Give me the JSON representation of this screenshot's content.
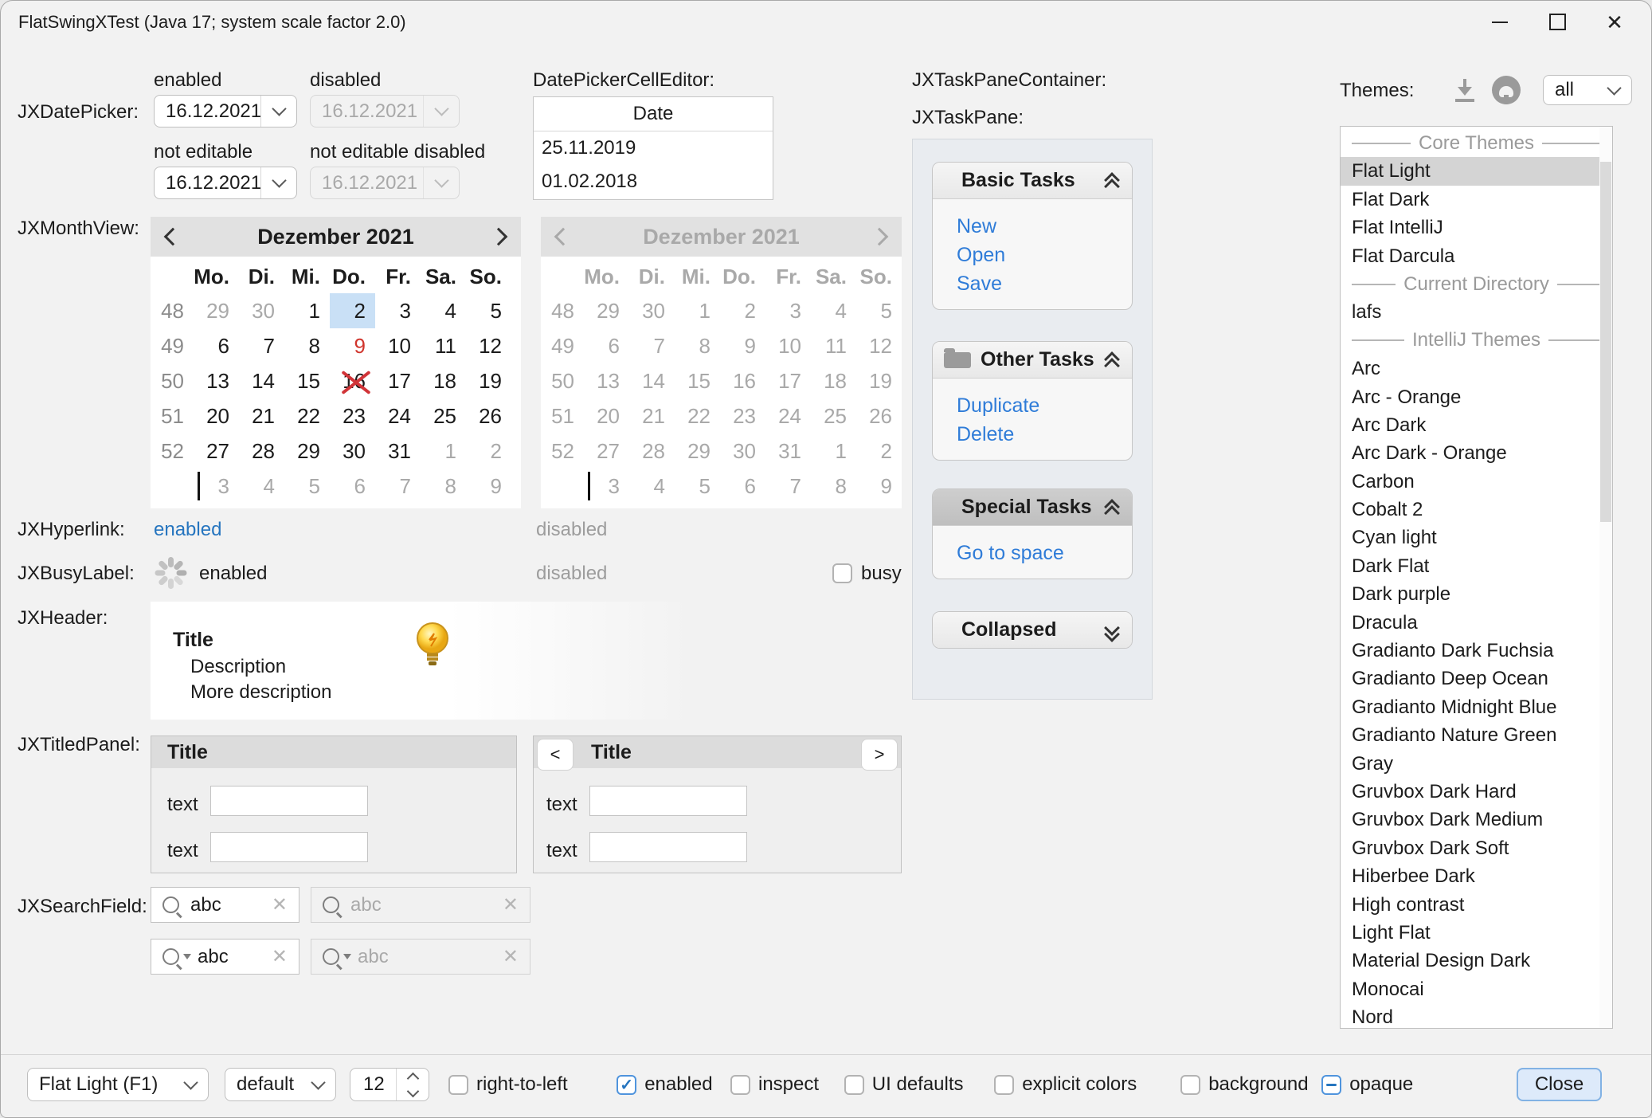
{
  "colors": {
    "accent": "#2675bf",
    "task_link": "#2f7cd8",
    "selection_blue": "#c9e0f6",
    "flag_red": "#d0342c",
    "window_bg": "#f2f2f2",
    "taskpane_container_bg": "#e9ecf0",
    "list_selection_gray": "#d4d4d4"
  },
  "window": {
    "title": "FlatSwingXTest (Java 17;  system scale factor 2.0)"
  },
  "section_labels": {
    "datepicker": "JXDatePicker:",
    "monthview": "JXMonthView:",
    "hyperlink": "JXHyperlink:",
    "busylabel": "JXBusyLabel:",
    "header": "JXHeader:",
    "titledpanel": "JXTitledPanel:",
    "searchfield": "JXSearchField:"
  },
  "datepicker": {
    "enabled_label": "enabled",
    "disabled_label": "disabled",
    "not_editable_label": "not editable",
    "not_editable_disabled_label": "not editable disabled",
    "value": "16.12.2021"
  },
  "cell_editor": {
    "label": "DatePickerCellEditor:",
    "column_header": "Date",
    "rows": [
      "25.11.2019",
      "01.02.2018"
    ]
  },
  "monthview": {
    "title": "Dezember 2021",
    "day_headers": [
      "Mo.",
      "Di.",
      "Mi.",
      "Do.",
      "Fr.",
      "Sa.",
      "So."
    ],
    "weeks": [
      {
        "num": "48",
        "days": [
          {
            "t": "29",
            "s": "muted"
          },
          {
            "t": "30",
            "s": "muted"
          },
          {
            "t": "1"
          },
          {
            "t": "2",
            "s": "selected"
          },
          {
            "t": "3"
          },
          {
            "t": "4"
          },
          {
            "t": "5"
          }
        ]
      },
      {
        "num": "49",
        "days": [
          {
            "t": "6"
          },
          {
            "t": "7"
          },
          {
            "t": "8"
          },
          {
            "t": "9",
            "s": "red"
          },
          {
            "t": "10"
          },
          {
            "t": "11"
          },
          {
            "t": "12"
          }
        ]
      },
      {
        "num": "50",
        "days": [
          {
            "t": "13"
          },
          {
            "t": "14"
          },
          {
            "t": "15"
          },
          {
            "t": "16",
            "s": "crossed"
          },
          {
            "t": "17"
          },
          {
            "t": "18"
          },
          {
            "t": "19"
          }
        ]
      },
      {
        "num": "51",
        "days": [
          {
            "t": "20"
          },
          {
            "t": "21"
          },
          {
            "t": "22"
          },
          {
            "t": "23"
          },
          {
            "t": "24"
          },
          {
            "t": "25"
          },
          {
            "t": "26"
          }
        ]
      },
      {
        "num": "52",
        "days": [
          {
            "t": "27"
          },
          {
            "t": "28"
          },
          {
            "t": "29"
          },
          {
            "t": "30"
          },
          {
            "t": "31"
          },
          {
            "t": "1",
            "s": "muted"
          },
          {
            "t": "2",
            "s": "muted"
          }
        ]
      },
      {
        "num": "",
        "caret": true,
        "days": [
          {
            "t": "3",
            "s": "muted"
          },
          {
            "t": "4",
            "s": "muted"
          },
          {
            "t": "5",
            "s": "muted"
          },
          {
            "t": "6",
            "s": "muted"
          },
          {
            "t": "7",
            "s": "muted"
          },
          {
            "t": "8",
            "s": "muted"
          },
          {
            "t": "9",
            "s": "muted"
          }
        ]
      }
    ]
  },
  "hyperlink": {
    "enabled": "enabled",
    "disabled": "disabled"
  },
  "busylabel": {
    "enabled": "enabled",
    "disabled": "disabled",
    "busy_label": "busy"
  },
  "header_demo": {
    "title": "Title",
    "description": "Description",
    "more": "More description"
  },
  "titledpanel": {
    "title": "Title",
    "text_label": "text",
    "prev": "<",
    "next": ">"
  },
  "searchfield": {
    "value": "abc",
    "disabled_value": "abc"
  },
  "taskpane": {
    "container_label": "JXTaskPaneContainer:",
    "pane_label": "JXTaskPane:",
    "groups": [
      {
        "title": "Basic Tasks",
        "chevron": "up",
        "links": [
          "New",
          "Open",
          "Save"
        ]
      },
      {
        "title": "Other Tasks",
        "icon": "folder",
        "chevron": "up",
        "links": [
          "Duplicate",
          "Delete"
        ]
      },
      {
        "title": "Special Tasks",
        "special": true,
        "chevron": "up",
        "links": [
          "Go to space"
        ]
      },
      {
        "title": "Collapsed",
        "chevron": "down",
        "links": []
      }
    ]
  },
  "themes": {
    "label": "Themes:",
    "filter_value": "all",
    "list": [
      {
        "sep": "Core Themes"
      },
      {
        "item": "Flat Light",
        "selected": true
      },
      {
        "item": "Flat Dark"
      },
      {
        "item": "Flat IntelliJ"
      },
      {
        "item": "Flat Darcula"
      },
      {
        "sep": "Current Directory"
      },
      {
        "item": "lafs"
      },
      {
        "sep": "IntelliJ Themes"
      },
      {
        "item": "Arc"
      },
      {
        "item": "Arc - Orange"
      },
      {
        "item": "Arc Dark"
      },
      {
        "item": "Arc Dark - Orange"
      },
      {
        "item": "Carbon"
      },
      {
        "item": "Cobalt 2"
      },
      {
        "item": "Cyan light"
      },
      {
        "item": "Dark Flat"
      },
      {
        "item": "Dark purple"
      },
      {
        "item": "Dracula"
      },
      {
        "item": "Gradianto Dark Fuchsia"
      },
      {
        "item": "Gradianto Deep Ocean"
      },
      {
        "item": "Gradianto Midnight Blue"
      },
      {
        "item": "Gradianto Nature Green"
      },
      {
        "item": "Gray"
      },
      {
        "item": "Gruvbox Dark Hard"
      },
      {
        "item": "Gruvbox Dark Medium"
      },
      {
        "item": "Gruvbox Dark Soft"
      },
      {
        "item": "Hiberbee Dark"
      },
      {
        "item": "High contrast"
      },
      {
        "item": "Light Flat"
      },
      {
        "item": "Material Design Dark"
      },
      {
        "item": "Monocai"
      },
      {
        "item": "Nord"
      }
    ]
  },
  "bottom": {
    "laf_combo_value": "Flat Light (F1)",
    "style_combo_value": "default",
    "font_size_value": "12",
    "checkboxes": [
      {
        "label": "right-to-left",
        "state": "unchecked"
      },
      {
        "label": "enabled",
        "state": "checked"
      },
      {
        "label": "inspect",
        "state": "unchecked"
      },
      {
        "label": "UI defaults",
        "state": "unchecked"
      },
      {
        "label": "explicit colors",
        "state": "unchecked"
      },
      {
        "label": "background",
        "state": "unchecked"
      },
      {
        "label": "opaque",
        "state": "indeterminate"
      }
    ],
    "close_label": "Close"
  }
}
